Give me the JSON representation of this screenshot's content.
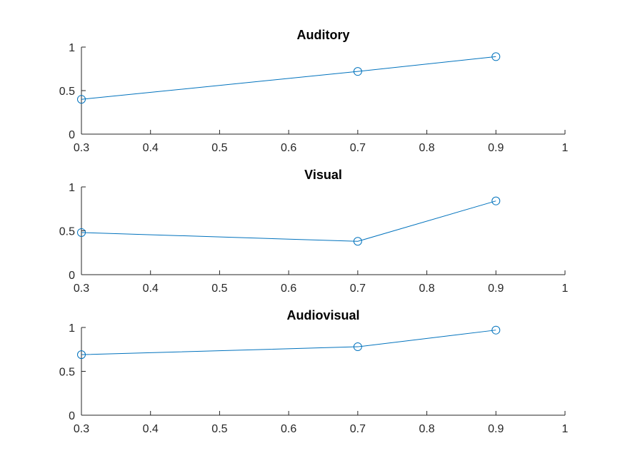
{
  "chart_data": [
    {
      "type": "line",
      "title": "Auditory",
      "x": [
        0.3,
        0.7,
        0.9
      ],
      "y": [
        0.4,
        0.72,
        0.89
      ],
      "xlim": [
        0.3,
        1
      ],
      "ylim": [
        0,
        1
      ],
      "xticks": [
        "0.3",
        "0.4",
        "0.5",
        "0.6",
        "0.7",
        "0.8",
        "0.9",
        "1"
      ],
      "yticks": [
        "0",
        "0.5",
        "1"
      ],
      "marker": "circle",
      "color": "#0072BD",
      "grid": false
    },
    {
      "type": "line",
      "title": "Visual",
      "x": [
        0.3,
        0.7,
        0.9
      ],
      "y": [
        0.48,
        0.38,
        0.84
      ],
      "xlim": [
        0.3,
        1
      ],
      "ylim": [
        0,
        1
      ],
      "xticks": [
        "0.3",
        "0.4",
        "0.5",
        "0.6",
        "0.7",
        "0.8",
        "0.9",
        "1"
      ],
      "yticks": [
        "0",
        "0.5",
        "1"
      ],
      "marker": "circle",
      "color": "#0072BD",
      "grid": false
    },
    {
      "type": "line",
      "title": "Audiovisual",
      "x": [
        0.3,
        0.7,
        0.9
      ],
      "y": [
        0.69,
        0.78,
        0.97
      ],
      "xlim": [
        0.3,
        1
      ],
      "ylim": [
        0,
        1
      ],
      "xticks": [
        "0.3",
        "0.4",
        "0.5",
        "0.6",
        "0.7",
        "0.8",
        "0.9",
        "1"
      ],
      "yticks": [
        "0",
        "0.5",
        "1"
      ],
      "marker": "circle",
      "color": "#0072BD",
      "grid": false
    }
  ]
}
